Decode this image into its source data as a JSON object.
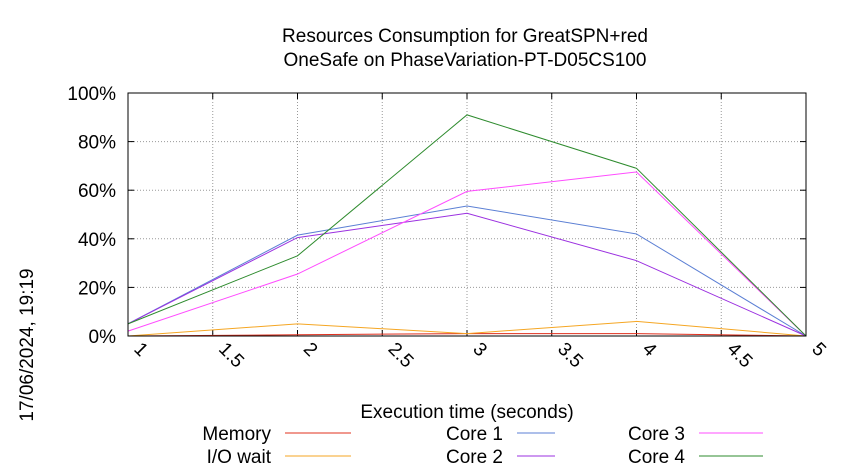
{
  "chart_data": {
    "type": "line",
    "title": "Resources Consumption for GreatSPN+red",
    "subtitle": "OneSafe on PhaseVariation-PT-D05CS100",
    "xlabel": "Execution time (seconds)",
    "ylabel": "",
    "xlim": [
      1,
      5
    ],
    "ylim": [
      0,
      100
    ],
    "grid": true,
    "legend_position": "bottom",
    "x_ticks": [
      "1",
      "1.5",
      "2",
      "2.5",
      "3",
      "3.5",
      "4",
      "4.5",
      "5"
    ],
    "y_ticks": [
      "0%",
      "20%",
      "40%",
      "60%",
      "80%",
      "100%"
    ],
    "x": [
      1,
      2,
      3,
      4,
      5
    ],
    "series": [
      {
        "name": "Memory",
        "color": "#e0301e",
        "values": [
          0,
          0.5,
          1,
          1,
          0
        ]
      },
      {
        "name": "I/O wait",
        "color": "#f5a623",
        "values": [
          0,
          5,
          1,
          6,
          0
        ]
      },
      {
        "name": "Core 1",
        "color": "#5b7fd4",
        "values": [
          5,
          41.5,
          53.5,
          42,
          0
        ]
      },
      {
        "name": "Core 2",
        "color": "#9b30e0",
        "values": [
          5,
          40.5,
          50.5,
          31,
          0
        ]
      },
      {
        "name": "Core 3",
        "color": "#ff4cff",
        "values": [
          2,
          25.5,
          59.5,
          67.5,
          0
        ]
      },
      {
        "name": "Core 4",
        "color": "#2e8b2e",
        "values": [
          5,
          33,
          91,
          69,
          0
        ]
      }
    ],
    "timestamp": "17/06/2024, 19:19"
  }
}
